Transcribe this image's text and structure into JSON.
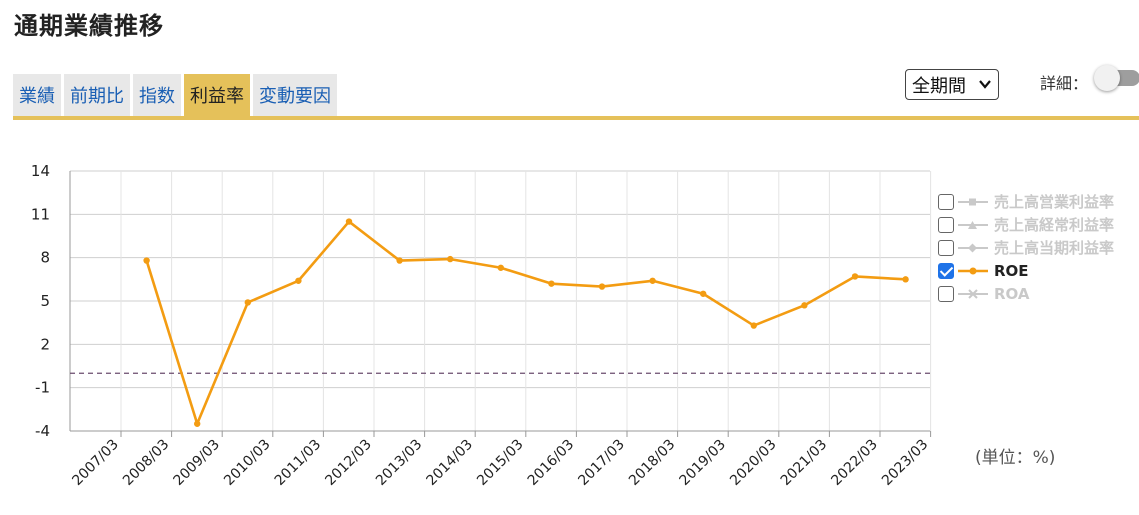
{
  "page_title": "通期業績推移",
  "tabs": [
    {
      "label": "業績",
      "active": false
    },
    {
      "label": "前期比",
      "active": false
    },
    {
      "label": "指数",
      "active": false
    },
    {
      "label": "利益率",
      "active": true
    },
    {
      "label": "変動要因",
      "active": false
    }
  ],
  "period_select": {
    "value": "全期間"
  },
  "detail": {
    "label": "詳細：",
    "toggle_on": false
  },
  "unit_label": "(単位：%)",
  "legend": [
    {
      "name": "売上高営業利益率",
      "checked": false
    },
    {
      "name": "売上高経常利益率",
      "checked": false
    },
    {
      "name": "売上高当期利益率",
      "checked": false
    },
    {
      "name": "ROE",
      "checked": true
    },
    {
      "name": "ROA",
      "checked": false
    }
  ],
  "colors": {
    "accent": "#e5c15a",
    "roe": "#f39c12",
    "inactive": "#c9c9c9",
    "checkbox": "#1f73e8"
  },
  "chart_data": {
    "type": "line",
    "categories": [
      "2007/03",
      "2008/03",
      "2009/03",
      "2010/03",
      "2011/03",
      "2012/03",
      "2013/03",
      "2014/03",
      "2015/03",
      "2016/03",
      "2017/03",
      "2018/03",
      "2019/03",
      "2020/03",
      "2021/03",
      "2022/03",
      "2023/03"
    ],
    "series": [
      {
        "name": "ROE",
        "values": [
          null,
          7.8,
          -3.5,
          4.9,
          6.4,
          10.5,
          7.8,
          7.9,
          7.3,
          6.2,
          6.0,
          6.4,
          5.5,
          3.3,
          4.7,
          6.7,
          6.5
        ]
      }
    ],
    "yticks": [
      14,
      11,
      8,
      5,
      2,
      -1,
      -4
    ],
    "ylim": [
      -4,
      14
    ],
    "zero_line": 0,
    "grid": true,
    "legend_position": "right"
  }
}
